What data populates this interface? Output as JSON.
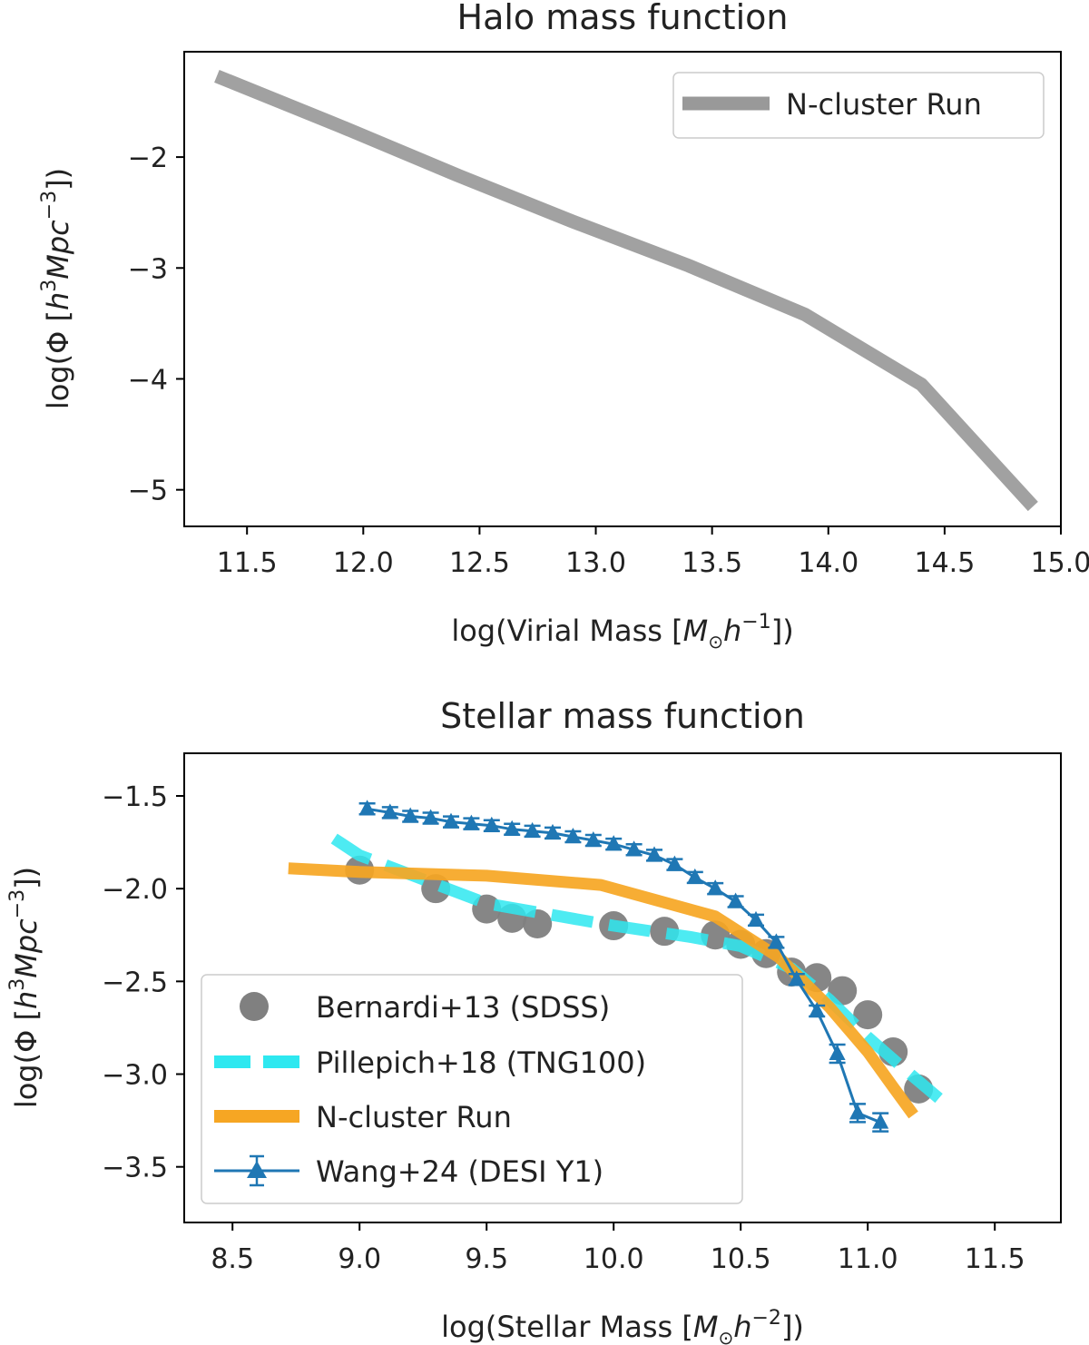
{
  "chart_data": [
    {
      "type": "line",
      "title": "Halo mass function",
      "xlabel": {
        "pre": "log(Virial Mass [",
        "sym": "M",
        "sub": "⊙",
        "mid": "h",
        "sup": "−1",
        "post": "])"
      },
      "ylabel": {
        "pre": "log(Φ [",
        "h": "h",
        "sup1": "3",
        "mid": "Mpc",
        "sup2": "−3",
        "post": "])"
      },
      "xlim": [
        11.23,
        15.0
      ],
      "ylim": [
        -5.33,
        -1.05
      ],
      "xticks": [
        11.5,
        12.0,
        12.5,
        13.0,
        13.5,
        14.0,
        14.5,
        15.0
      ],
      "xtick_labels": [
        "11.5",
        "12.0",
        "12.5",
        "13.0",
        "13.5",
        "14.0",
        "14.5",
        "15.0"
      ],
      "yticks": [
        -2,
        -3,
        -4,
        -5
      ],
      "ytick_labels": [
        "−2",
        "−3",
        "−4",
        "−5"
      ],
      "legend_position": "top-right",
      "series": [
        {
          "name": "N-cluster Run",
          "color": "#999999",
          "style": "solid-thick",
          "x": [
            11.37,
            11.9,
            12.4,
            12.9,
            13.4,
            13.9,
            14.4,
            14.88
          ],
          "y": [
            -1.27,
            -1.72,
            -2.16,
            -2.58,
            -2.98,
            -3.42,
            -4.05,
            -5.15
          ]
        }
      ]
    },
    {
      "type": "line",
      "title": "Stellar mass function",
      "xlabel": {
        "pre": "log(Stellar Mass [",
        "sym": "M",
        "sub": "⊙",
        "mid": "h",
        "sup": "−2",
        "post": "])"
      },
      "ylabel": {
        "pre": "log(Φ [",
        "h": "h",
        "sup1": "3",
        "mid": "Mpc",
        "sup2": "−3",
        "post": "])"
      },
      "xlim": [
        8.31,
        11.76
      ],
      "ylim": [
        -3.8,
        -1.27
      ],
      "xticks": [
        8.5,
        9.0,
        9.5,
        10.0,
        10.5,
        11.0,
        11.5
      ],
      "xtick_labels": [
        "8.5",
        "9.0",
        "9.5",
        "10.0",
        "10.5",
        "11.0",
        "11.5"
      ],
      "yticks": [
        -1.5,
        -2.0,
        -2.5,
        -3.0,
        -3.5
      ],
      "ytick_labels": [
        "−1.5",
        "−2.0",
        "−2.5",
        "−3.0",
        "−3.5"
      ],
      "legend_position": "lower-left",
      "series": [
        {
          "name": "Bernardi+13 (SDSS)",
          "color": "#808080",
          "style": "circles",
          "x": [
            9.0,
            9.3,
            9.5,
            9.6,
            9.7,
            10.0,
            10.2,
            10.4,
            10.5,
            10.6,
            10.7,
            10.8,
            10.9,
            11.0,
            11.1,
            11.2
          ],
          "y": [
            -1.9,
            -2.0,
            -2.11,
            -2.16,
            -2.19,
            -2.2,
            -2.23,
            -2.25,
            -2.3,
            -2.35,
            -2.45,
            -2.48,
            -2.55,
            -2.68,
            -2.88,
            -3.08
          ]
        },
        {
          "name": "Pillepich+18 (TNG100)",
          "color": "#2ee8f0",
          "style": "dashed",
          "x": [
            8.9,
            9.0,
            9.5,
            10.0,
            10.3,
            10.5,
            10.7,
            10.85,
            11.0,
            11.15,
            11.28
          ],
          "y": [
            -1.73,
            -1.82,
            -2.08,
            -2.2,
            -2.26,
            -2.31,
            -2.43,
            -2.6,
            -2.8,
            -2.98,
            -3.13
          ]
        },
        {
          "name": "N-cluster Run",
          "color": "#f6a623",
          "style": "solid-thick",
          "x": [
            8.72,
            9.0,
            9.5,
            9.95,
            10.4,
            10.65,
            10.85,
            11.0,
            11.1,
            11.18
          ],
          "y": [
            -1.89,
            -1.91,
            -1.93,
            -1.98,
            -2.15,
            -2.37,
            -2.64,
            -2.88,
            -3.07,
            -3.22
          ]
        },
        {
          "name": "Wang+24 (DESI Y1)",
          "color": "#1f77b4",
          "style": "triangles-errorbars",
          "x": [
            9.03,
            9.12,
            9.2,
            9.28,
            9.36,
            9.44,
            9.52,
            9.6,
            9.68,
            9.76,
            9.84,
            9.92,
            10.0,
            10.08,
            10.16,
            10.24,
            10.32,
            10.4,
            10.48,
            10.56,
            10.64,
            10.72,
            10.8,
            10.88,
            10.96,
            11.05
          ],
          "y": [
            -1.57,
            -1.59,
            -1.61,
            -1.62,
            -1.64,
            -1.65,
            -1.66,
            -1.68,
            -1.69,
            -1.7,
            -1.72,
            -1.74,
            -1.76,
            -1.79,
            -1.82,
            -1.87,
            -1.94,
            -2.0,
            -2.07,
            -2.17,
            -2.29,
            -2.49,
            -2.66,
            -2.89,
            -3.21,
            -3.26
          ]
        }
      ]
    }
  ]
}
